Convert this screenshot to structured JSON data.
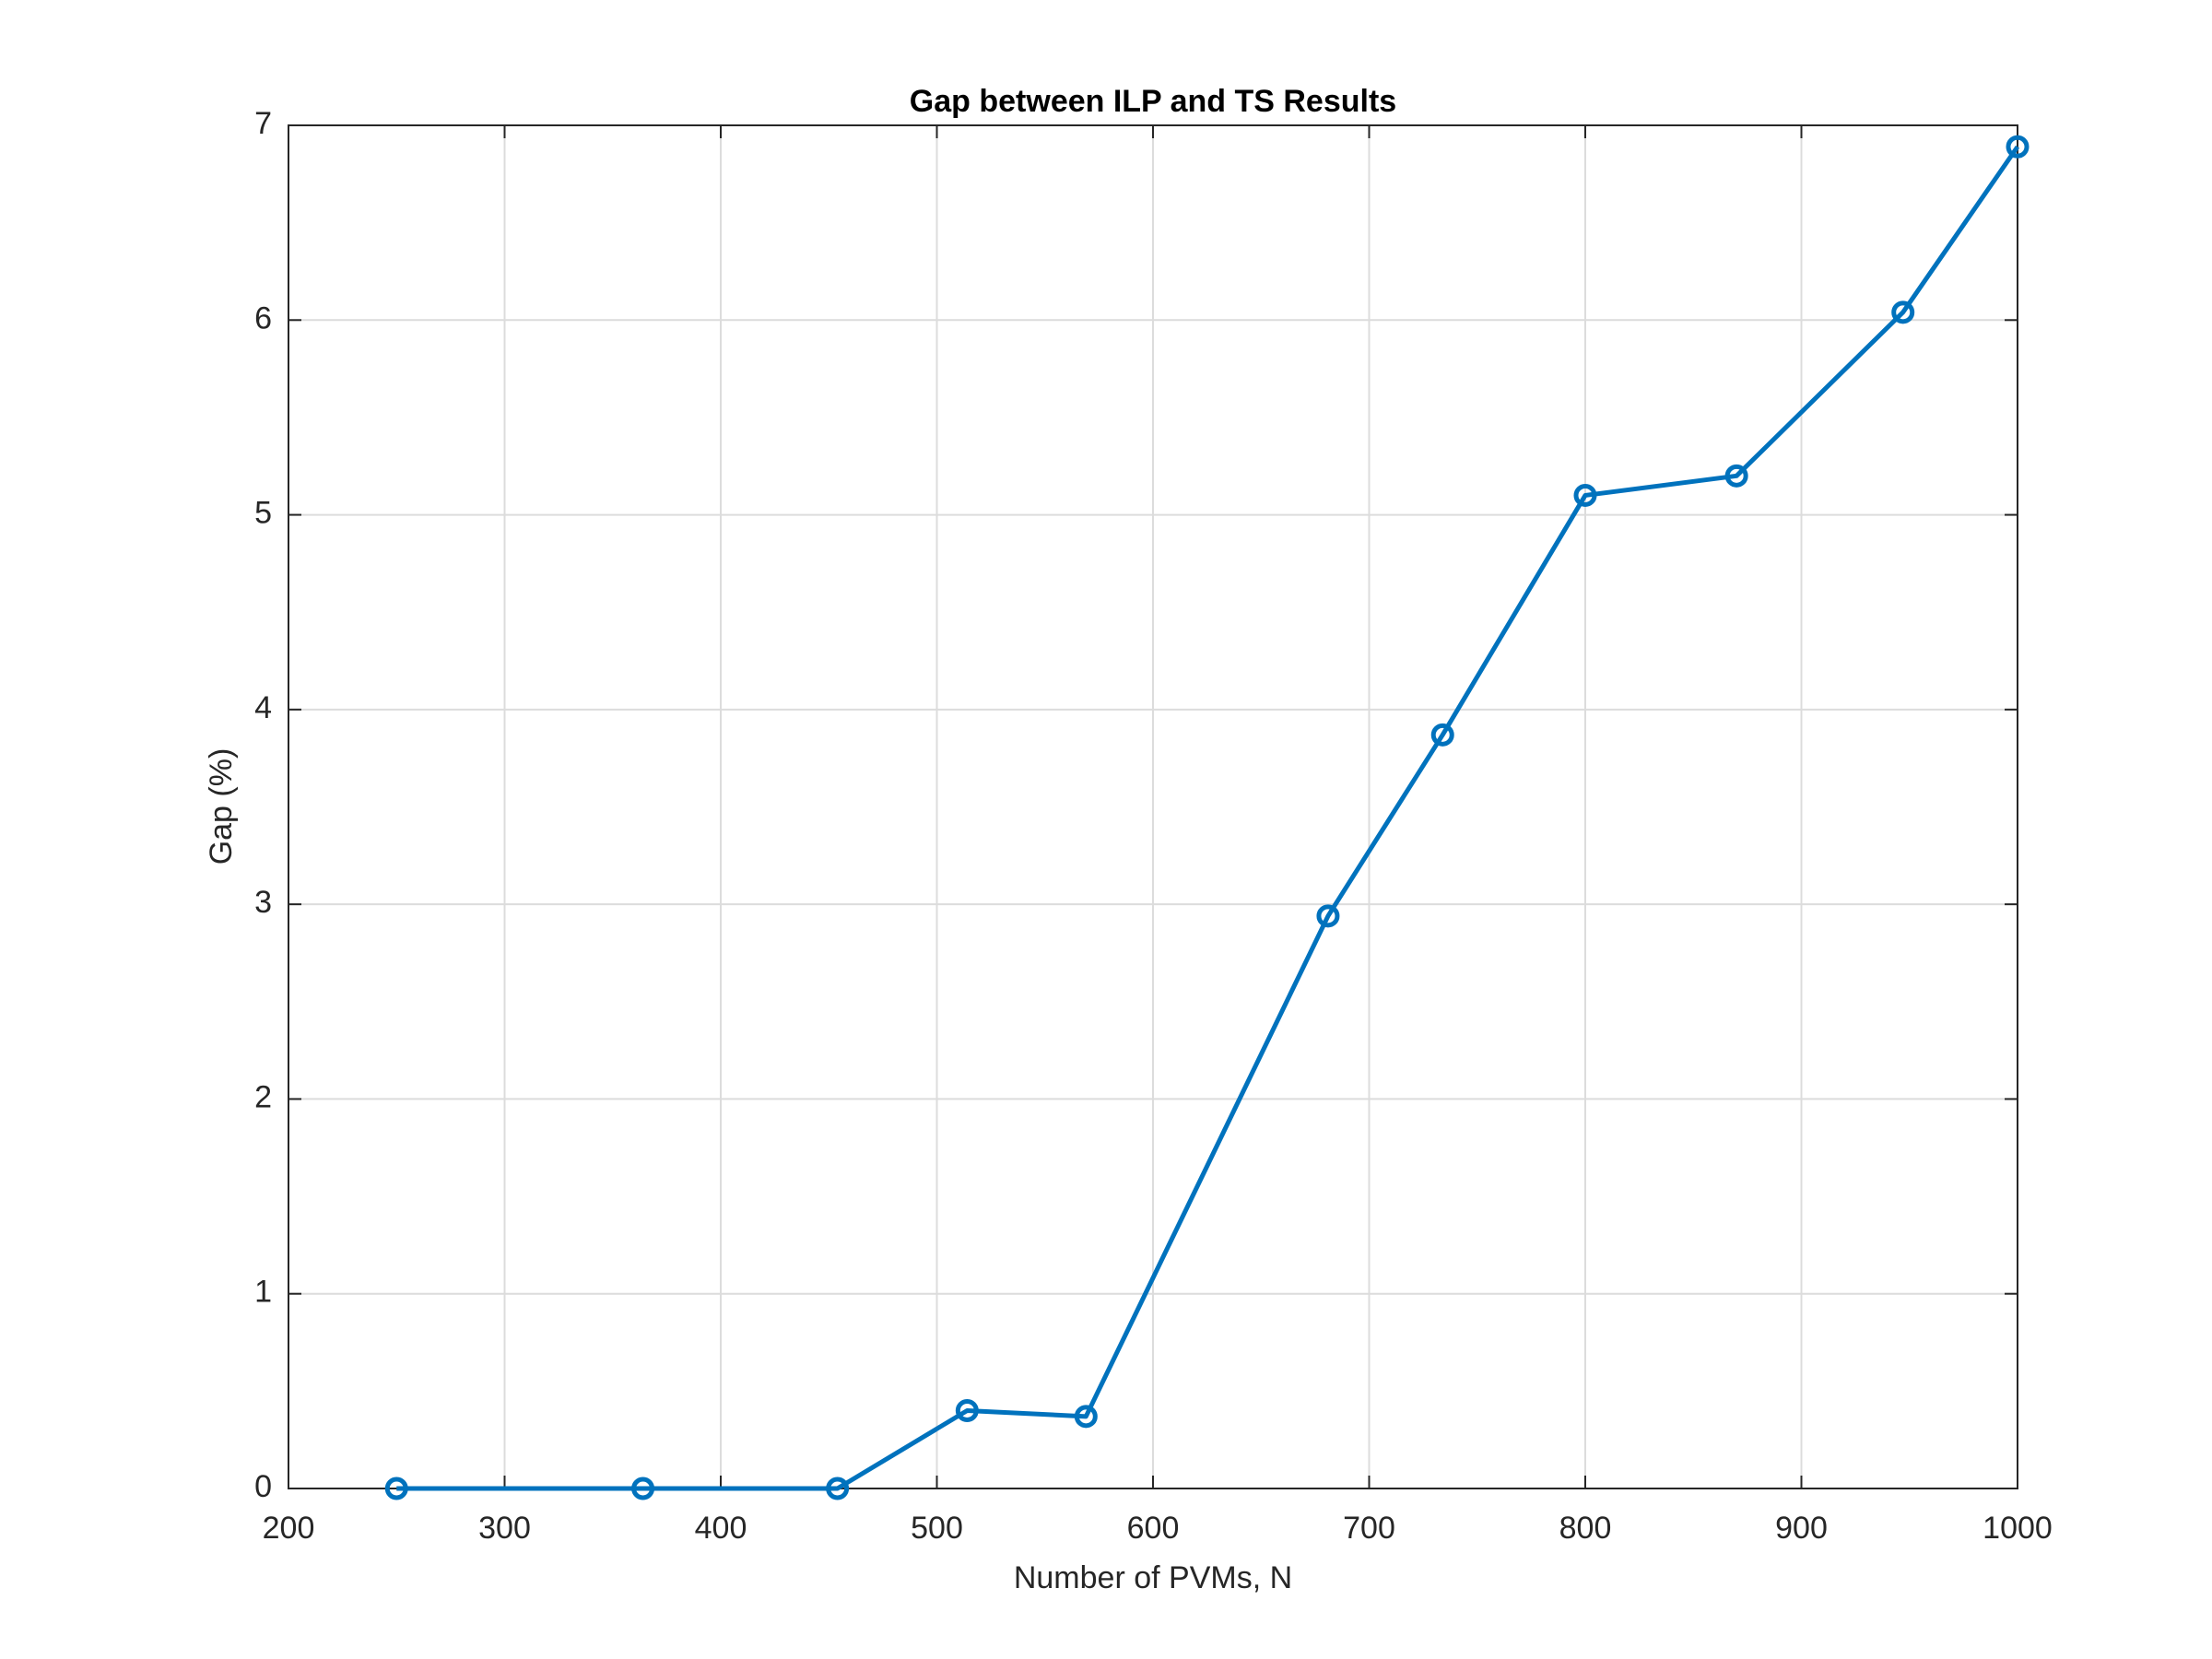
{
  "chart_data": {
    "type": "line",
    "title": "Gap between ILP and TS Results",
    "x_label": "Number of PVMs, N",
    "y_label": "Gap (%)",
    "x": [
      250,
      364,
      454,
      514,
      569,
      681,
      734,
      800,
      870,
      947,
      1000
    ],
    "series": [
      {
        "name": "Gap",
        "color": "#0072bd",
        "values": [
          0,
          0,
          0,
          0.4,
          0.37,
          2.94,
          3.87,
          5.1,
          5.2,
          6.04,
          6.89
        ]
      }
    ],
    "xlim": [
      200,
      1000
    ],
    "xticks": [
      200,
      300,
      400,
      500,
      600,
      700,
      800,
      900,
      1000
    ],
    "ylim": [
      0,
      7
    ],
    "yticks": [
      0,
      1,
      2,
      3,
      4,
      5,
      6,
      7
    ],
    "grid": true
  }
}
